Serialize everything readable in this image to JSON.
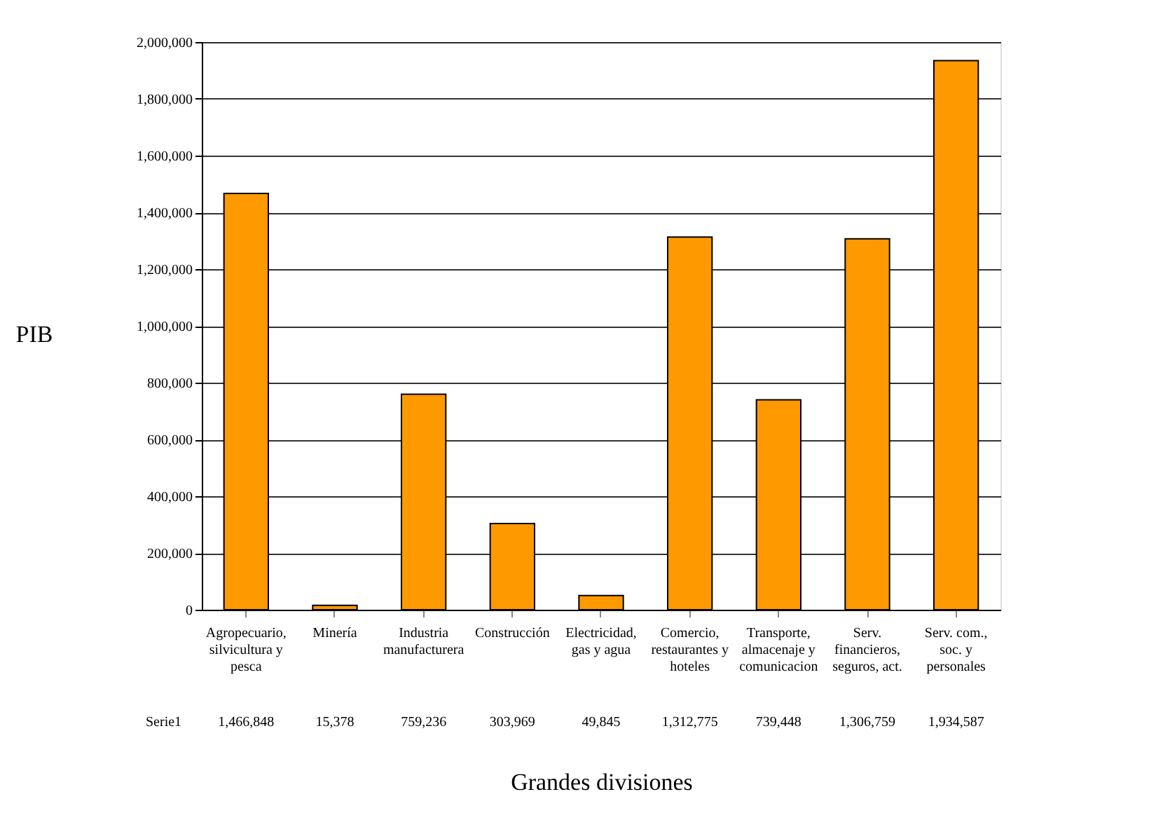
{
  "chart_data": {
    "type": "bar",
    "xlabel": "Grandes divisiones",
    "ylabel": "PIB",
    "categories": [
      "Agropecuario, silvicultura y pesca",
      "Minería",
      "Industria manufacturera",
      "Construcción",
      "Electricidad, gas y agua",
      "Comercio, restaurantes y hoteles",
      "Transporte, almacenaje y comunicacion",
      "Serv. financieros, seguros, act.",
      "Serv. com., soc. y personales"
    ],
    "series": [
      {
        "name": "Serie1",
        "color": "#ff9900",
        "values": [
          1466848,
          15378,
          759236,
          303969,
          49845,
          1312775,
          739448,
          1306759,
          1934587
        ],
        "value_labels": [
          "1,466,848",
          "15,378",
          "759,236",
          "303,969",
          "49,845",
          "1,312,775",
          "739,448",
          "1,306,759",
          "1,934,587"
        ]
      }
    ],
    "ylim": [
      0,
      2000000
    ],
    "yticks": [
      0,
      {
        "value": 200000,
        "label": "200,000"
      },
      {
        "value": 400000,
        "label": "400,000"
      },
      {
        "value": 600000,
        "label": "600,000"
      },
      {
        "value": 800000,
        "label": "800,000"
      },
      {
        "value": 1000000,
        "label": "1,000,000"
      },
      {
        "value": 1200000,
        "label": "1,200,000"
      },
      {
        "value": 1400000,
        "label": "1,400,000"
      },
      {
        "value": 1600000,
        "label": "1,600,000"
      },
      {
        "value": 1800000,
        "label": "1,800,000"
      },
      {
        "value": 2000000,
        "label": "2,000,000"
      }
    ],
    "grid": "y"
  }
}
